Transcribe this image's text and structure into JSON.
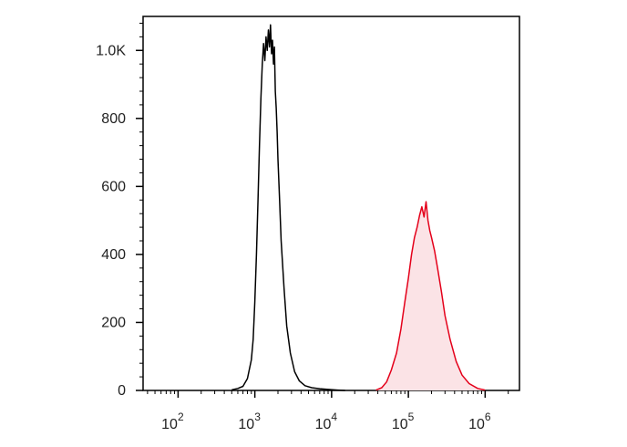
{
  "chart_data": {
    "type": "area",
    "title": "",
    "xlabel": "",
    "ylabel": "",
    "x_scale": "log",
    "xlim": [
      35,
      2800000
    ],
    "ylim": [
      0,
      1100
    ],
    "grid": false,
    "legend": "none",
    "x_ticks": [
      {
        "value": 100,
        "base": "10",
        "exp": "2"
      },
      {
        "value": 1000,
        "base": "10",
        "exp": "3"
      },
      {
        "value": 10000,
        "base": "10",
        "exp": "4"
      },
      {
        "value": 100000,
        "base": "10",
        "exp": "5"
      },
      {
        "value": 1000000,
        "base": "10",
        "exp": "6"
      }
    ],
    "y_ticks": [
      {
        "value": 0,
        "label": "0"
      },
      {
        "value": 200,
        "label": "200"
      },
      {
        "value": 400,
        "label": "400"
      },
      {
        "value": 600,
        "label": "600"
      },
      {
        "value": 800,
        "label": "800"
      },
      {
        "value": 1000,
        "label": "1.0K"
      }
    ],
    "series": [
      {
        "color": "#000000",
        "fill": "none",
        "points": [
          [
            500,
            2
          ],
          [
            600,
            6
          ],
          [
            700,
            12
          ],
          [
            800,
            35
          ],
          [
            900,
            90
          ],
          [
            950,
            150
          ],
          [
            1000,
            260
          ],
          [
            1050,
            400
          ],
          [
            1100,
            560
          ],
          [
            1150,
            720
          ],
          [
            1200,
            860
          ],
          [
            1250,
            960
          ],
          [
            1300,
            1020
          ],
          [
            1350,
            970
          ],
          [
            1400,
            1040
          ],
          [
            1450,
            1000
          ],
          [
            1500,
            1060
          ],
          [
            1550,
            1010
          ],
          [
            1600,
            1075
          ],
          [
            1650,
            990
          ],
          [
            1700,
            1030
          ],
          [
            1750,
            960
          ],
          [
            1800,
            1010
          ],
          [
            1850,
            880
          ],
          [
            1900,
            830
          ],
          [
            1950,
            760
          ],
          [
            2000,
            680
          ],
          [
            2100,
            560
          ],
          [
            2200,
            440
          ],
          [
            2400,
            300
          ],
          [
            2600,
            190
          ],
          [
            2900,
            110
          ],
          [
            3300,
            55
          ],
          [
            3800,
            28
          ],
          [
            4500,
            14
          ],
          [
            5500,
            8
          ],
          [
            7000,
            5
          ],
          [
            9000,
            3
          ],
          [
            12000,
            1
          ],
          [
            15000,
            0
          ]
        ]
      },
      {
        "color": "#e4001a",
        "fill": "#fbe3e6",
        "points": [
          [
            38000,
            1
          ],
          [
            45000,
            8
          ],
          [
            52000,
            25
          ],
          [
            60000,
            60
          ],
          [
            70000,
            110
          ],
          [
            80000,
            180
          ],
          [
            90000,
            260
          ],
          [
            100000,
            330
          ],
          [
            110000,
            400
          ],
          [
            120000,
            450
          ],
          [
            130000,
            480
          ],
          [
            140000,
            515
          ],
          [
            150000,
            540
          ],
          [
            160000,
            510
          ],
          [
            170000,
            555
          ],
          [
            180000,
            500
          ],
          [
            190000,
            470
          ],
          [
            200000,
            450
          ],
          [
            220000,
            410
          ],
          [
            240000,
            360
          ],
          [
            270000,
            290
          ],
          [
            300000,
            220
          ],
          [
            350000,
            150
          ],
          [
            420000,
            85
          ],
          [
            500000,
            45
          ],
          [
            620000,
            20
          ],
          [
            800000,
            6
          ],
          [
            1000000,
            1
          ]
        ]
      }
    ]
  }
}
